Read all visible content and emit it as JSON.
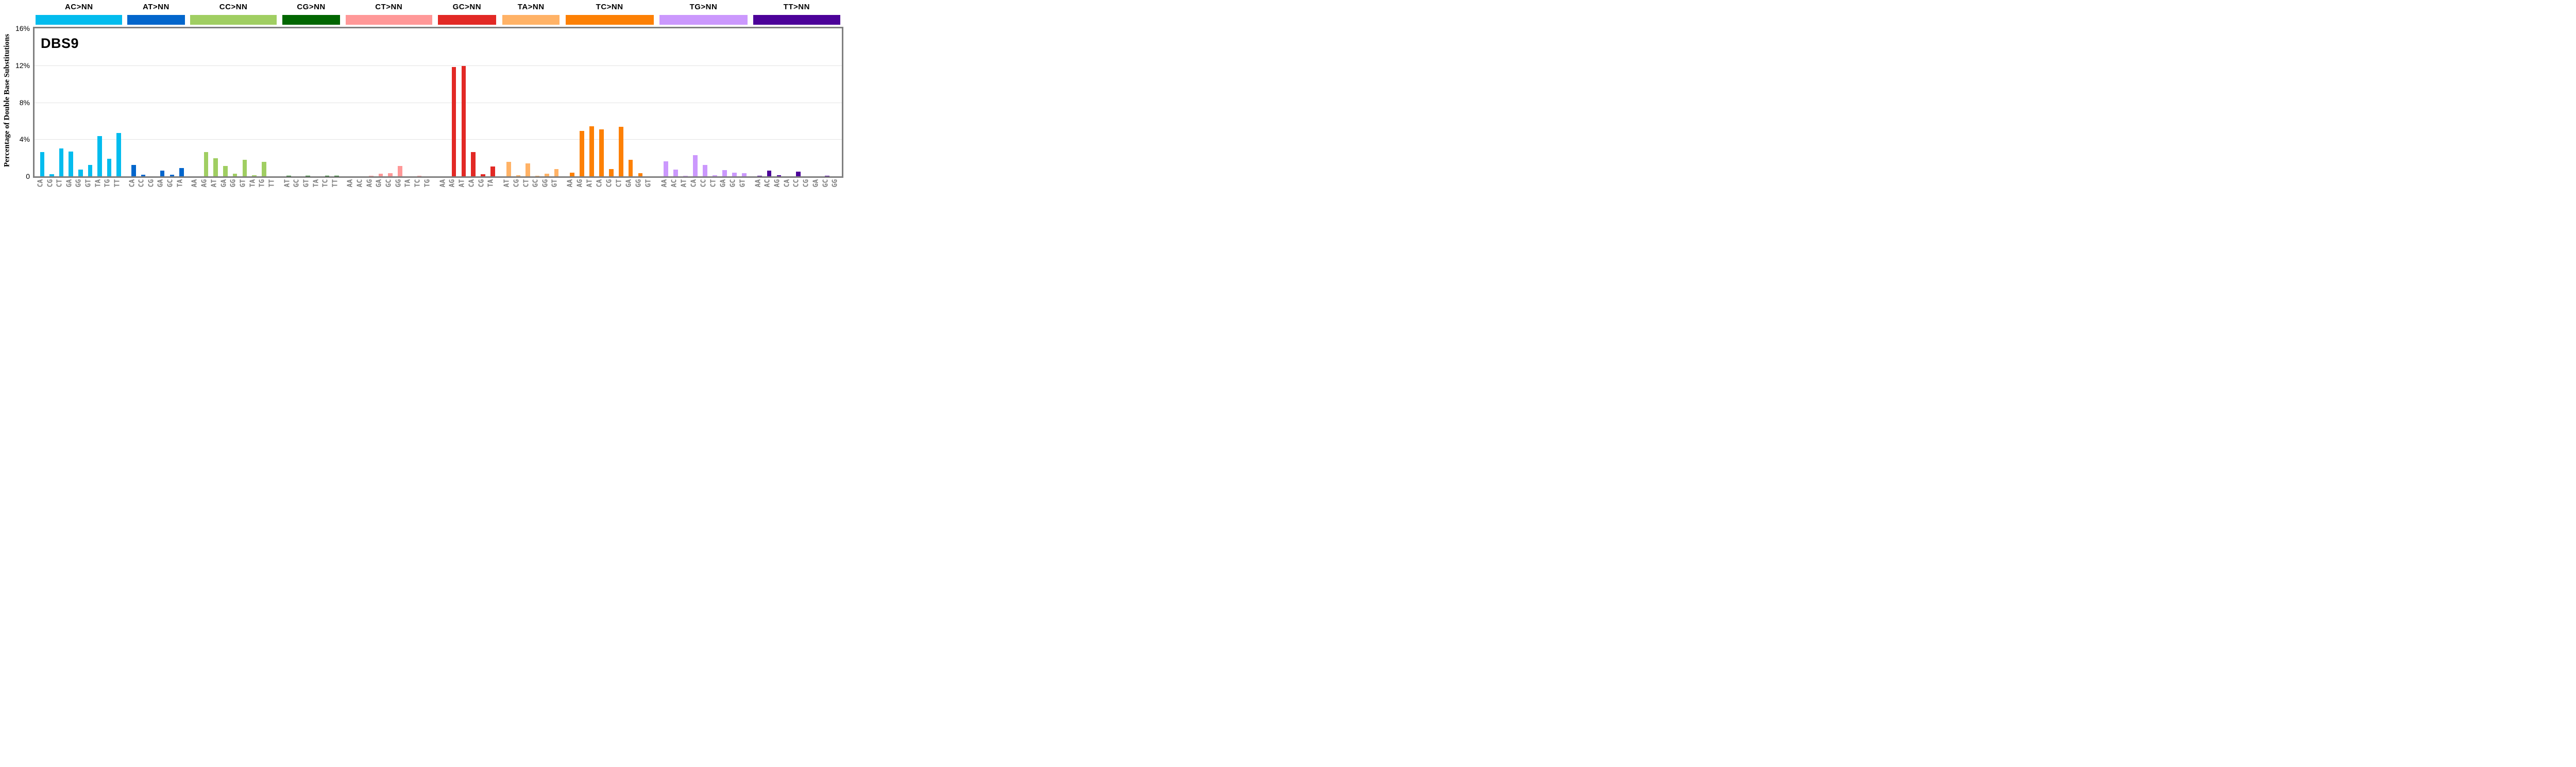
{
  "title": "DBS9",
  "y_axis": {
    "label": "Percentage of Double Base Substitutions",
    "tick_labels": [
      "16%",
      "12%",
      "8%",
      "4%",
      "0"
    ]
  },
  "ui_colors": {
    "axis_gray": "#7f7f7f",
    "grid_gray": "#e3e3e3",
    "background": "#ffffff",
    "xlabel_gray": "#7f7f7f"
  },
  "chart_data": {
    "type": "bar",
    "title": "DBS9",
    "xlabel": "",
    "ylabel": "Percentage of Double Base Substitutions",
    "ylim": [
      0,
      16
    ],
    "ytick_values_percent": [
      0,
      4,
      8,
      12,
      16
    ],
    "grid": "horizontal gridlines at 4%, 8%, 12%; top border is 16%",
    "legend_position": "none (color strips with group labels above plot)",
    "groups": [
      {
        "label": "AC>NN",
        "color": "#03BCEE",
        "left_pct": 0.35,
        "width_pct": 10.69,
        "categories": [
          "CA",
          "CG",
          "CT",
          "GA",
          "GG",
          "GT",
          "TA",
          "TG",
          "TT"
        ],
        "values": [
          2.6,
          0.2,
          3.0,
          2.65,
          0.7,
          1.25,
          4.35,
          1.9,
          4.7
        ]
      },
      {
        "label": "AT>NN",
        "color": "#0366CC",
        "left_pct": 11.68,
        "width_pct": 7.13,
        "categories": [
          "CA",
          "CC",
          "CG",
          "GA",
          "GC",
          "TA"
        ],
        "values": [
          1.25,
          0.15,
          0,
          0.6,
          0.15,
          0.9
        ]
      },
      {
        "label": "CC>NN",
        "color": "#A0CE62",
        "left_pct": 19.46,
        "width_pct": 10.74,
        "categories": [
          "AA",
          "AG",
          "AT",
          "GA",
          "GG",
          "GT",
          "TA",
          "TG",
          "TT"
        ],
        "values": [
          0,
          2.6,
          1.95,
          1.1,
          0.3,
          1.8,
          0.1,
          1.55,
          0
        ]
      },
      {
        "label": "CG>NN",
        "color": "#016601",
        "left_pct": 30.9,
        "width_pct": 7.13,
        "categories": [
          "AT",
          "GC",
          "GT",
          "TA",
          "TC",
          "TT"
        ],
        "values": [
          0.06,
          0,
          0.05,
          0,
          0.06,
          0.05
        ]
      },
      {
        "label": "CT>NN",
        "color": "#FF9898",
        "left_pct": 38.71,
        "width_pct": 10.74,
        "categories": [
          "AA",
          "AC",
          "AG",
          "GA",
          "GC",
          "GG",
          "TA",
          "TC",
          "TG"
        ],
        "values": [
          0,
          0,
          0.06,
          0.28,
          0.33,
          1.1,
          0,
          0.03,
          0
        ]
      },
      {
        "label": "GC>NN",
        "color": "#E22925",
        "left_pct": 50.16,
        "width_pct": 7.19,
        "categories": [
          "AA",
          "AG",
          "AT",
          "CA",
          "CG",
          "TA"
        ],
        "values": [
          0,
          11.8,
          11.95,
          2.6,
          0.25,
          1.05
        ]
      },
      {
        "label": "TA>NN",
        "color": "#FFB266",
        "left_pct": 58.14,
        "width_pct": 7.1,
        "categories": [
          "AT",
          "CG",
          "CT",
          "GC",
          "GG",
          "GT"
        ],
        "values": [
          1.55,
          0.12,
          1.4,
          0.03,
          0.3,
          0.78
        ]
      },
      {
        "label": "TC>NN",
        "color": "#FD8004",
        "left_pct": 65.97,
        "width_pct": 10.9,
        "categories": [
          "AA",
          "AG",
          "AT",
          "CA",
          "CG",
          "CT",
          "GA",
          "GG",
          "GT"
        ],
        "values": [
          0.38,
          4.9,
          5.4,
          5.1,
          0.8,
          5.35,
          1.8,
          0.36,
          0
        ]
      },
      {
        "label": "TG>NN",
        "color": "#CB98FD",
        "left_pct": 77.59,
        "width_pct": 10.93,
        "categories": [
          "AA",
          "AC",
          "AT",
          "CA",
          "CC",
          "CT",
          "GA",
          "GC",
          "GT"
        ],
        "values": [
          1.6,
          0.75,
          0.07,
          2.3,
          1.2,
          0.1,
          0.65,
          0.4,
          0.33
        ]
      },
      {
        "label": "TT>NN",
        "color": "#4C0299",
        "left_pct": 89.22,
        "width_pct": 10.75,
        "categories": [
          "AA",
          "AC",
          "AG",
          "CA",
          "CC",
          "CG",
          "GA",
          "GC",
          "GG"
        ],
        "values": [
          0.05,
          0.62,
          0.1,
          0,
          0.5,
          0,
          0,
          0.02,
          0
        ]
      }
    ]
  }
}
